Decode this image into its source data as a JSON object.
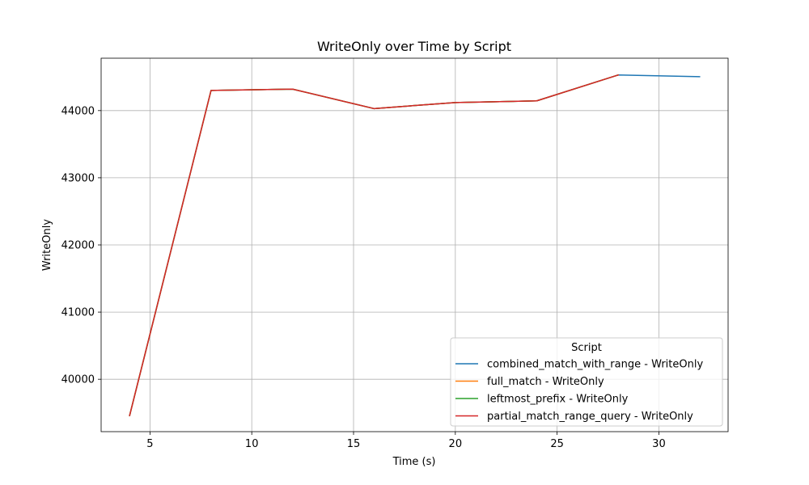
{
  "chart_data": {
    "type": "line",
    "title": "WriteOnly over Time by Script",
    "xlabel": "Time (s)",
    "ylabel": "WriteOnly",
    "xlim": [
      2.6,
      33.4
    ],
    "ylim": [
      39220,
      44780
    ],
    "xticks": [
      5,
      10,
      15,
      20,
      25,
      30
    ],
    "yticks": [
      40000,
      41000,
      42000,
      43000,
      44000
    ],
    "grid": true,
    "legend": {
      "title": "Script",
      "position": "lower-right"
    },
    "series": [
      {
        "name": "combined_match_with_range - WriteOnly",
        "color": "#1f77b4",
        "x": [
          4,
          8,
          12,
          16,
          20,
          24,
          28,
          32
        ],
        "y": [
          39460,
          44300,
          44320,
          44030,
          44120,
          44145,
          44530,
          44505
        ]
      },
      {
        "name": "full_match - WriteOnly",
        "color": "#ff7f0e",
        "x": [
          4,
          8,
          12,
          16,
          20,
          24,
          28
        ],
        "y": [
          39460,
          44300,
          44320,
          44030,
          44120,
          44145,
          44530
        ]
      },
      {
        "name": "leftmost_prefix - WriteOnly",
        "color": "#2ca02c",
        "x": [
          4,
          8,
          12,
          16,
          20,
          24,
          28
        ],
        "y": [
          39460,
          44300,
          44320,
          44030,
          44120,
          44145,
          44530
        ]
      },
      {
        "name": "partial_match_range_query - WriteOnly",
        "color": "#d62728",
        "x": [
          4,
          8,
          12,
          16,
          20,
          24,
          28
        ],
        "y": [
          39460,
          44300,
          44320,
          44030,
          44120,
          44145,
          44530
        ]
      }
    ]
  }
}
